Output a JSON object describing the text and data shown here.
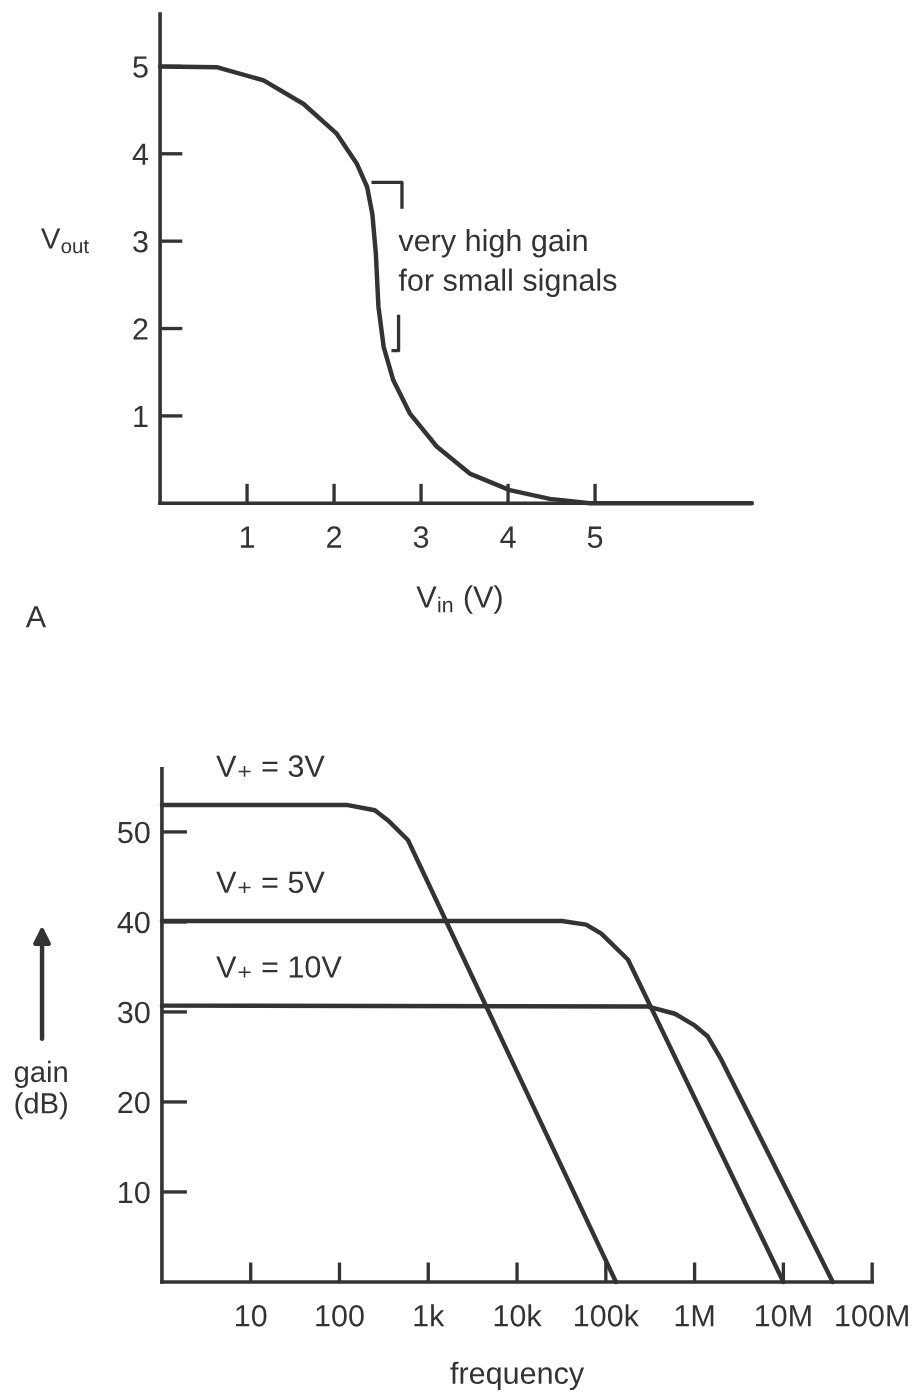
{
  "chart_data": [
    {
      "type": "line",
      "xlabel": "V$_{in}$ (V)",
      "ylabel": "V$_{out}$",
      "x": [
        0,
        0.66,
        1.19,
        1.65,
        2.03,
        2.26,
        2.38,
        2.44,
        2.48,
        2.51,
        2.57,
        2.68,
        2.87,
        3.18,
        3.56,
        4.02,
        4.48,
        4.94,
        6.8
      ],
      "series": [
        {
          "color": "#333333",
          "values": [
            5,
            4.99,
            4.84,
            4.57,
            4.23,
            3.89,
            3.62,
            3.31,
            2.86,
            2.25,
            1.79,
            1.41,
            1.03,
            0.65,
            0.34,
            0.15,
            0.05,
            0,
            0
          ]
        }
      ],
      "xlim": [
        0,
        6.8
      ],
      "ylim": [
        0,
        5.6
      ],
      "xticks": [
        1,
        2,
        3,
        4,
        5
      ],
      "yticks": [
        1,
        2,
        3,
        4,
        5
      ],
      "annotations": [
        {
          "text": "very high gain\nfor small signals",
          "x": 2.5,
          "y": 2.75
        },
        "A"
      ]
    },
    {
      "type": "line",
      "xlabel": "frequency",
      "ylabel": "gain\n(dB)",
      "log": "x",
      "series": [
        {
          "name": "V₊ = 3V",
          "color": "#333333",
          "x": [
            1,
            120,
            250,
            350,
            590,
            130000
          ],
          "values": [
            53,
            53,
            52.4,
            51.3,
            49.1,
            0
          ]
        },
        {
          "name": "V₊ = 5V",
          "color": "#333333",
          "x": [
            1,
            32000,
            60000,
            89000,
            178000,
            10000000
          ],
          "values": [
            40.1,
            40.1,
            39.7,
            38.7,
            35.8,
            0
          ]
        },
        {
          "name": "V₊ = 10V",
          "color": "#333333",
          "x": [
            1,
            300000,
            600000,
            1000000,
            1400000,
            2000000,
            36000000
          ],
          "values": [
            30.7,
            30.6,
            29.8,
            28.5,
            27.3,
            24.7,
            0
          ]
        }
      ],
      "xlim": [
        1,
        100000000
      ],
      "ylim": [
        0,
        57
      ],
      "xticks": [
        10,
        100,
        {
          "value": 1000,
          "label": "1k"
        },
        {
          "value": 10000,
          "label": "10k"
        },
        {
          "value": 100000,
          "label": "100k"
        },
        {
          "value": 1000000,
          "label": "1M"
        },
        {
          "value": 10000000,
          "label": "10M"
        },
        {
          "value": 100000000,
          "label": "100M"
        }
      ],
      "yticks": [
        10,
        20,
        30,
        40,
        50
      ]
    }
  ]
}
